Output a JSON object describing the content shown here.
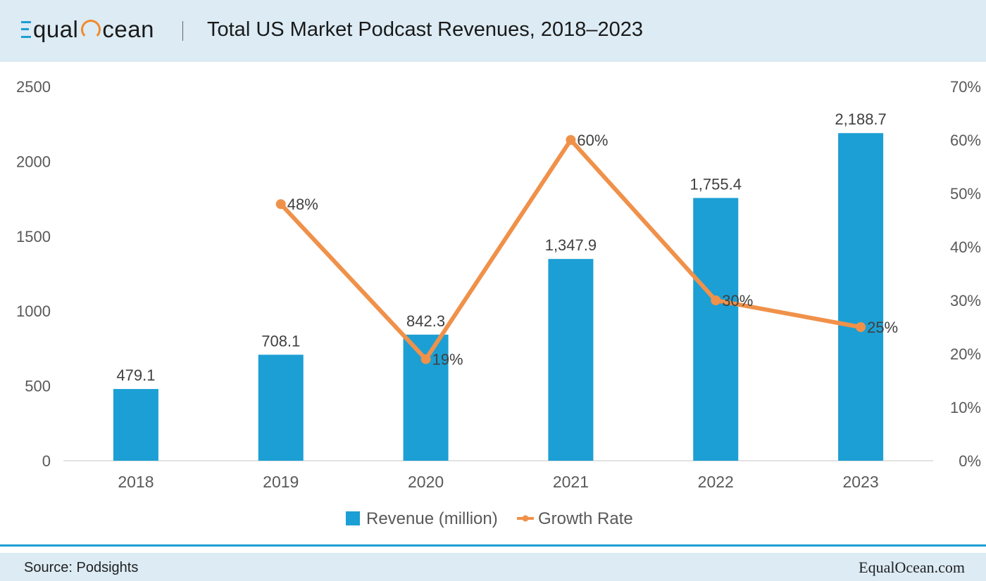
{
  "header": {
    "logo_text_a": "qual",
    "logo_text_b": "cean",
    "title": "Total US Market Podcast Revenues, 2018–2023"
  },
  "footer": {
    "source": "Source: Podsights",
    "brand": "EqualOcean.com"
  },
  "colors": {
    "bar": "#1c9fd4",
    "line": "#f0914a",
    "header_bg": "#dcebf4",
    "accent_line": "#1c9fd4"
  },
  "chart_data": {
    "type": "bar",
    "categories": [
      "2018",
      "2019",
      "2020",
      "2021",
      "2022",
      "2023"
    ],
    "series": [
      {
        "name": "Revenue (million)",
        "type": "bar",
        "axis": "left",
        "values": [
          479.1,
          708.1,
          842.3,
          1347.9,
          1755.4,
          2188.7
        ],
        "labels": [
          "479.1",
          "708.1",
          "842.3",
          "1,347.9",
          "1,755.4",
          "2,188.7"
        ]
      },
      {
        "name": "Growth Rate",
        "type": "line",
        "axis": "right",
        "values": [
          null,
          48,
          19,
          60,
          30,
          25
        ],
        "labels": [
          "",
          "48%",
          "19%",
          "60%",
          "30%",
          "25%"
        ]
      }
    ],
    "y_left": {
      "min": 0,
      "max": 2500,
      "ticks": [
        "0",
        "500",
        "1000",
        "1500",
        "2000",
        "2500"
      ]
    },
    "y_right": {
      "min": 0,
      "max": 70,
      "ticks": [
        "0%",
        "10%",
        "20%",
        "30%",
        "40%",
        "50%",
        "60%",
        "70%"
      ]
    },
    "legend_position": "bottom",
    "grid": false
  }
}
